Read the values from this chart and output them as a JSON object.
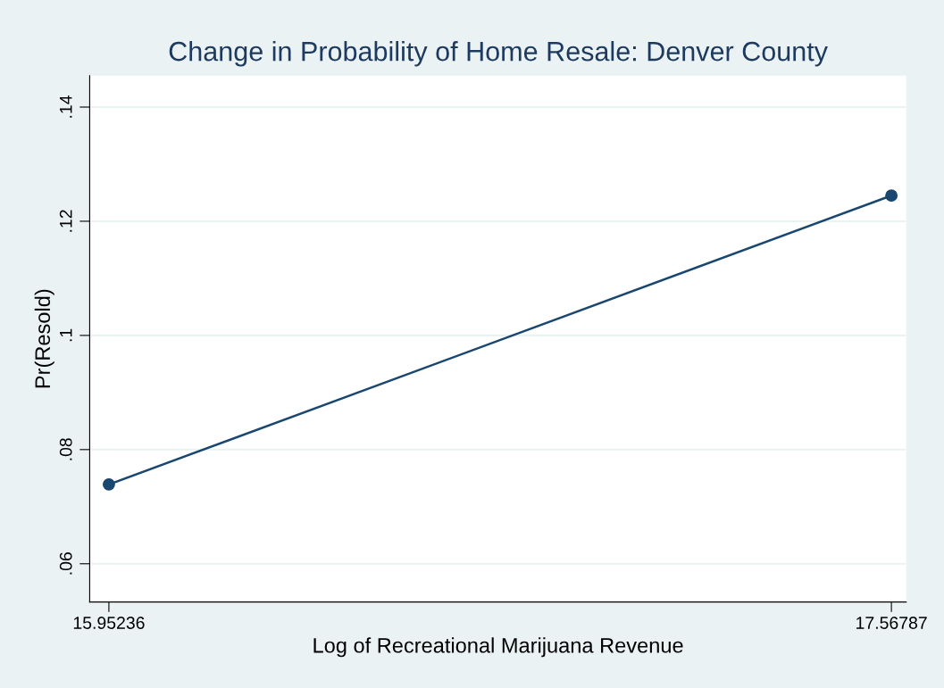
{
  "chart_data": {
    "type": "line",
    "title": "Change in Probability of Home Resale: Denver County",
    "xlabel": "Log of Recreational Marijuana Revenue",
    "ylabel": "Pr(Resold)",
    "x": [
      15.95236,
      17.56787
    ],
    "series": [
      {
        "color": "#1a476f",
        "values": [
          0.0739,
          0.1245
        ]
      }
    ],
    "xlim": [
      15.9127,
      17.5985
    ],
    "xticks": [
      15.95236,
      17.56787
    ],
    "ylim": [
      0.0533,
      0.1455
    ],
    "yticks": [
      {
        "value": 0.06,
        "label": ".06"
      },
      {
        "value": 0.08,
        "label": ".08"
      },
      {
        "value": 0.1,
        "label": ".1"
      },
      {
        "value": 0.12,
        "label": ".12"
      },
      {
        "value": 0.14,
        "label": ".14"
      }
    ],
    "grid": "y",
    "marker": "circle",
    "line_style": "solid",
    "legend": false
  }
}
